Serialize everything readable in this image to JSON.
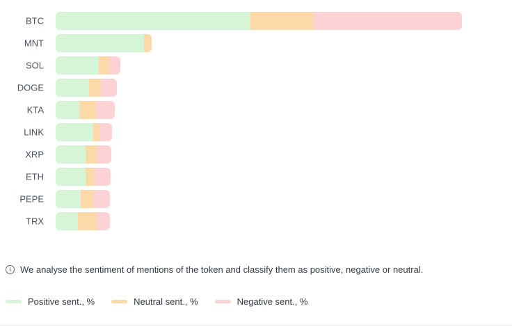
{
  "chart_data": {
    "type": "bar",
    "orientation": "horizontal",
    "stacked": true,
    "categories": [
      "BTC",
      "MNT",
      "SOL",
      "DOGE",
      "KTA",
      "LINK",
      "XRP",
      "ETH",
      "PEPE",
      "TRX"
    ],
    "series": [
      {
        "name": "Positive sent., %",
        "color": "#d6f5d6",
        "values": [
          280,
          127,
          62,
          48,
          34,
          54,
          43,
          43,
          36,
          32
        ]
      },
      {
        "name": "Neutral sent., %",
        "color": "#fdd9a8",
        "values": [
          91,
          11,
          15,
          17,
          24,
          9,
          17,
          12,
          18,
          28
        ]
      },
      {
        "name": "Negative sent., %",
        "color": "#ffd3d6",
        "values": [
          213,
          0,
          16,
          23,
          27,
          18,
          20,
          24,
          24,
          18
        ]
      }
    ],
    "grid": false,
    "legend_position": "bottom-left"
  },
  "info": {
    "icon": "info-icon",
    "text": "We analyse the sentiment of mentions of the token and classify them as positive, negative or neutral."
  },
  "legend": [
    {
      "label": "Positive sent., %",
      "color": "#d6f5d6"
    },
    {
      "label": "Neutral sent., %",
      "color": "#fdd9a8"
    },
    {
      "label": "Negative sent., %",
      "color": "#ffd3d6"
    }
  ]
}
